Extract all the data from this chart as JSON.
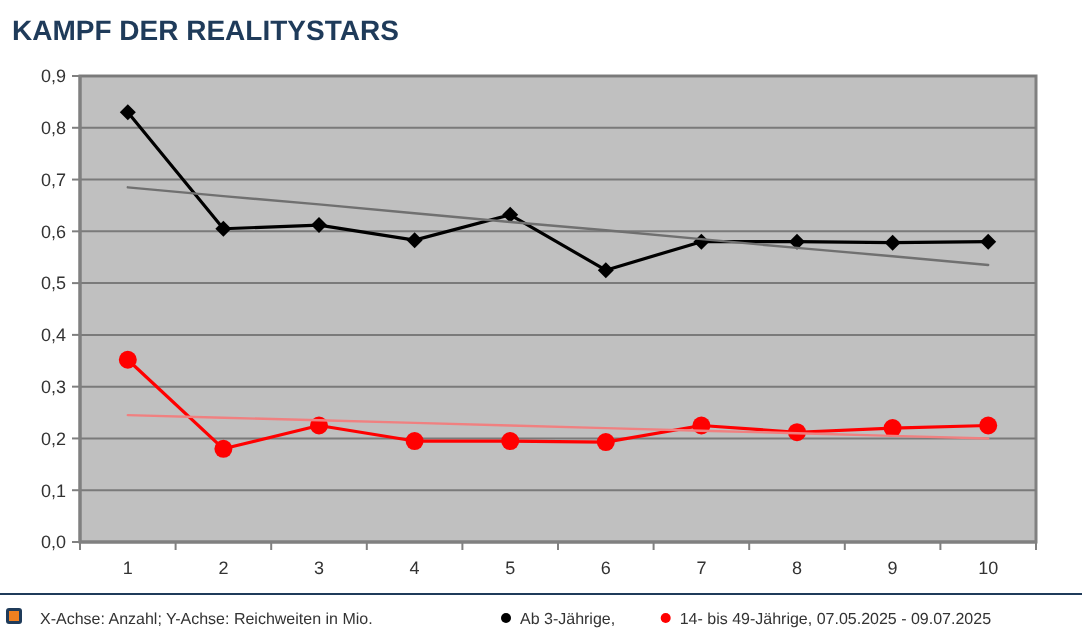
{
  "chart_data": {
    "type": "line",
    "title": "KAMPF DER REALITYSTARS",
    "categories": [
      "1",
      "2",
      "3",
      "4",
      "5",
      "6",
      "7",
      "8",
      "9",
      "10"
    ],
    "series": [
      {
        "name": "Ab 3-Jährige,",
        "color": "#000000",
        "marker": "diamond",
        "values": [
          0.83,
          0.605,
          0.612,
          0.583,
          0.632,
          0.525,
          0.58,
          0.58,
          0.578,
          0.58
        ]
      },
      {
        "name": "14- bis 49-Jährige, 07.05.2025 - 09.07.2025",
        "color": "#ff0000",
        "marker": "circle",
        "values": [
          0.352,
          0.18,
          0.225,
          0.195,
          0.195,
          0.193,
          0.225,
          0.212,
          0.22,
          0.225
        ]
      },
      {
        "color": "#707070",
        "marker": "none",
        "values": [
          0.685,
          0.668,
          0.652,
          0.635,
          0.618,
          0.602,
          0.585,
          0.568,
          0.552,
          0.535
        ]
      },
      {
        "color": "#f08080",
        "marker": "none",
        "values": [
          0.245,
          0.24,
          0.235,
          0.23,
          0.225,
          0.22,
          0.215,
          0.21,
          0.205,
          0.2
        ]
      }
    ],
    "ylim": [
      0,
      0.9
    ],
    "yticks": [
      {
        "value": 0,
        "label": "0,0"
      },
      {
        "value": 0.1,
        "label": "0,1"
      },
      {
        "value": 0.2,
        "label": "0,2"
      },
      {
        "value": 0.3,
        "label": "0,3"
      },
      {
        "value": 0.4,
        "label": "0,4"
      },
      {
        "value": 0.5,
        "label": "0,5"
      },
      {
        "value": 0.6,
        "label": "0,6"
      },
      {
        "value": 0.7,
        "label": "0,7"
      },
      {
        "value": 0.8,
        "label": "0,8"
      },
      {
        "value": 0.9,
        "label": "0,9"
      }
    ],
    "grid": "y",
    "legend": "bottom",
    "annotations": [
      "X-Achse: Anzahl; Y-Achse: Reichweiten in Mio."
    ]
  }
}
